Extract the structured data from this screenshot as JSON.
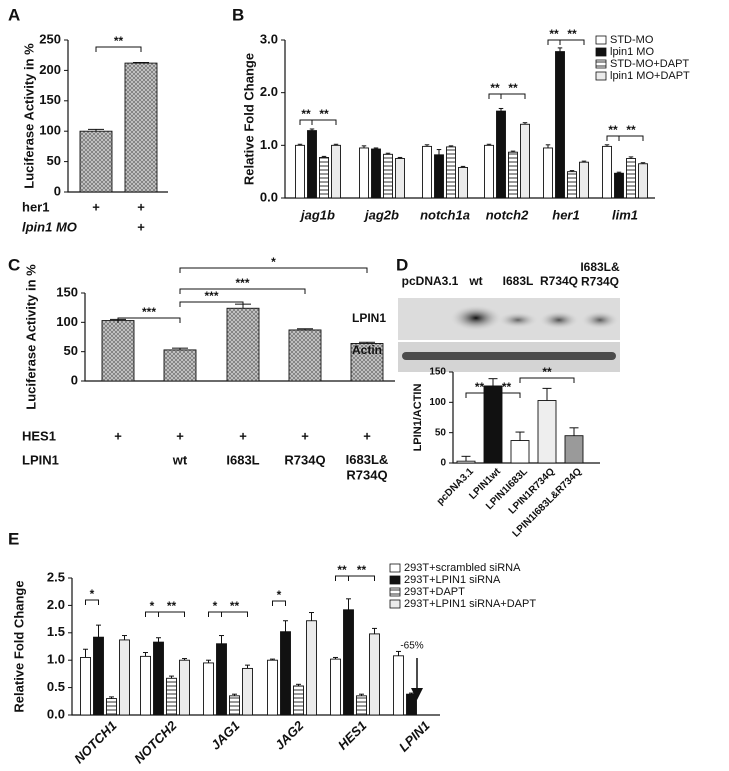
{
  "chart_data": [
    {
      "panel": "A",
      "type": "bar",
      "y_label": "Luciferase  Activity in %",
      "values": [
        100,
        212
      ],
      "errors": [
        3,
        1
      ],
      "color": "#cfcfcf",
      "hatch": "crosshatch",
      "ylim": [
        0,
        250
      ],
      "yticks": [
        0,
        50,
        100,
        150,
        200,
        250
      ],
      "annotations": [
        "**"
      ],
      "conditions": [
        {
          "label": "her1",
          "marks": [
            "+",
            "+"
          ]
        },
        {
          "label": "lpin1 MO",
          "marks": [
            null,
            "+"
          ]
        }
      ]
    },
    {
      "panel": "B",
      "type": "grouped_bar",
      "y_label": "Relative Fold Change",
      "categories": [
        "jag1b",
        "jag2b",
        "notch1a",
        "notch2",
        "her1",
        "lim1"
      ],
      "series": [
        {
          "name": "STD-MO",
          "color": "#ffffff",
          "values": [
            1.0,
            0.95,
            0.98,
            1.0,
            0.95,
            0.98
          ],
          "errors": [
            0.02,
            0.04,
            0.03,
            0.02,
            0.06,
            0.03
          ]
        },
        {
          "name": "lpin1 MO",
          "color": "#111111",
          "values": [
            1.28,
            0.93,
            0.82,
            1.65,
            2.78,
            0.47
          ],
          "errors": [
            0.03,
            0.02,
            0.1,
            0.05,
            0.07,
            0.02
          ]
        },
        {
          "name": "STD-MO+DAPT",
          "color": "#ffffff",
          "hatch": "stripes",
          "values": [
            0.77,
            0.83,
            0.97,
            0.87,
            0.5,
            0.75
          ],
          "errors": [
            0.02,
            0.02,
            0.02,
            0.02,
            0.02,
            0.03
          ]
        },
        {
          "name": "lpin1 MO+DAPT",
          "color": "#ebebeb",
          "values": [
            1.0,
            0.75,
            0.58,
            1.4,
            0.68,
            0.65
          ],
          "errors": [
            0.02,
            0.02,
            0.02,
            0.03,
            0.02,
            0.02
          ]
        }
      ],
      "ylim": [
        0,
        3
      ],
      "yticks": [
        {
          "value": 0,
          "label": "0.0"
        },
        {
          "value": 1,
          "label": "1.0"
        },
        {
          "value": 2,
          "label": "2.0"
        },
        {
          "value": 3,
          "label": "3.0"
        }
      ],
      "annotations": [
        "**",
        "**",
        "**",
        "**",
        "**",
        "**",
        "**",
        "**"
      ]
    },
    {
      "panel": "C",
      "type": "bar",
      "y_label": "Luciferase Activity in %",
      "values": [
        103,
        53,
        124,
        87,
        64
      ],
      "errors": [
        2,
        3,
        7,
        2,
        2
      ],
      "color": "#cfcfcf",
      "hatch": "crosshatch",
      "ylim": [
        0,
        150
      ],
      "yticks": [
        0,
        50,
        100,
        150
      ],
      "annotations": [
        "***",
        "***",
        "***",
        "*"
      ],
      "conditions": [
        {
          "label": "HES1",
          "marks": [
            "+",
            "+",
            "+",
            "+",
            "+"
          ]
        },
        {
          "label": "LPIN1",
          "marks": [
            null,
            "wt",
            "I683L",
            "R734Q",
            "I683L&\nR734Q"
          ]
        }
      ]
    },
    {
      "panel": "D",
      "type": "bar",
      "y_label": "LPIN1/ACTIN",
      "categories": [
        "pcDNA3.1",
        "LPIN1wt",
        "LPIN1I683L",
        "LPIN1R734Q",
        "LPIN1I683L&R734Q"
      ],
      "values": [
        3,
        127,
        37,
        103,
        45
      ],
      "errors": [
        8,
        12,
        14,
        20,
        13
      ],
      "colors": [
        "#ffffff",
        "#111111",
        "#ffffff",
        "#eeeeee",
        "#9a9a9a"
      ],
      "ylim": [
        0,
        150
      ],
      "yticks": [
        0,
        50,
        100,
        150
      ],
      "annotations": [
        "**",
        "**",
        "**"
      ]
    },
    {
      "panel": "E",
      "type": "grouped_bar",
      "y_label": "Relative Fold Change",
      "categories": [
        "NOTCH1",
        "NOTCH2",
        "JAG1",
        "JAG2",
        "HES1",
        "LPIN1"
      ],
      "series": [
        {
          "name": "293T+scrambled siRNA",
          "color": "#ffffff",
          "values": [
            1.05,
            1.07,
            0.95,
            1.0,
            1.02,
            1.08
          ],
          "errors": [
            0.15,
            0.07,
            0.05,
            0.02,
            0.03,
            0.08
          ]
        },
        {
          "name": "293T+LPIN1 siRNA",
          "color": "#111111",
          "values": [
            1.42,
            1.33,
            1.3,
            1.52,
            1.92,
            0.38
          ],
          "errors": [
            0.22,
            0.08,
            0.15,
            0.2,
            0.2,
            0.02
          ]
        },
        {
          "name": "293T+DAPT",
          "color": "#ffffff",
          "hatch": "stripes",
          "values": [
            0.3,
            0.67,
            0.35,
            0.53,
            0.35,
            null
          ],
          "errors": [
            0.03,
            0.04,
            0.03,
            0.03,
            0.03,
            null
          ]
        },
        {
          "name": "293T+LPIN1 siRNA+DAPT",
          "color": "#ebebeb",
          "values": [
            1.37,
            1.0,
            0.85,
            1.72,
            1.48,
            null
          ],
          "errors": [
            0.08,
            0.03,
            0.06,
            0.15,
            0.1,
            null
          ]
        }
      ],
      "ylim": [
        0,
        2.5
      ],
      "yticks": [
        {
          "value": 0,
          "label": "0.0"
        },
        {
          "value": 0.5,
          "label": "0.5"
        },
        {
          "value": 1,
          "label": "1.0"
        },
        {
          "value": 1.5,
          "label": "1.5"
        },
        {
          "value": 2,
          "label": "2.0"
        },
        {
          "value": 2.5,
          "label": "2.5"
        }
      ],
      "annotations": [
        "*",
        "*",
        "**",
        "*",
        "**",
        "*",
        "**",
        "**"
      ],
      "callout": "-65%"
    }
  ],
  "blot": {
    "lane_labels": [
      "pcDNA3.1",
      "wt",
      "I683L",
      "R734Q",
      "I683L&\nR734Q"
    ],
    "row_labels": [
      "LPIN1",
      "Actin"
    ]
  }
}
